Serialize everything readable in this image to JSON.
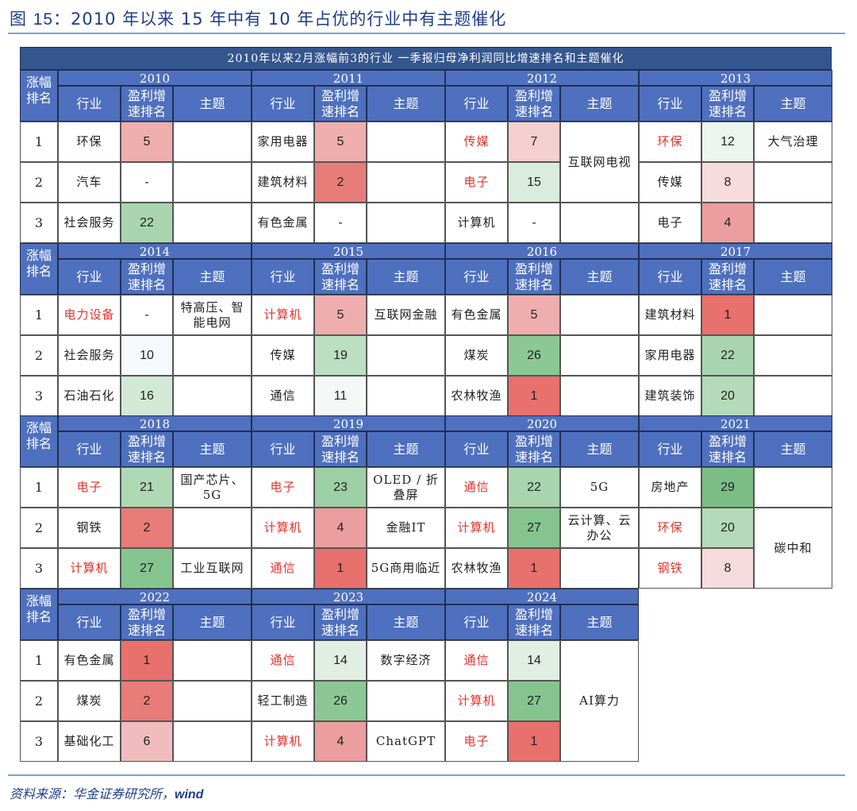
{
  "figure": {
    "title_prefix": "图 ",
    "title_num": "15",
    "title_text": "：2010 年以来 15 年中有 10 年占优的行业中有主题催化"
  },
  "table": {
    "banner": "2010年以来2月涨幅前3的行业 一季报归母净利润同比增速排名和主题催化",
    "headers": {
      "rank": "涨幅排名",
      "industry": "行业",
      "profit_rank": "盈利增速排名",
      "theme": "主题"
    },
    "ranks": [
      "1",
      "2",
      "3"
    ],
    "years": [
      {
        "year": "2010",
        "rows": [
          {
            "industry": "环保",
            "red": false,
            "profit": "5",
            "bg": "#efaeae",
            "theme": ""
          },
          {
            "industry": "汽车",
            "red": false,
            "profit": "-",
            "bg": "#ffffff",
            "theme": ""
          },
          {
            "industry": "社会服务",
            "red": false,
            "profit": "22",
            "bg": "#a9d5ae",
            "theme": ""
          }
        ]
      },
      {
        "year": "2011",
        "rows": [
          {
            "industry": "家用电器",
            "red": false,
            "profit": "5",
            "bg": "#efaeae",
            "theme": ""
          },
          {
            "industry": "建筑材料",
            "red": false,
            "profit": "2",
            "bg": "#e77c79",
            "theme": ""
          },
          {
            "industry": "有色金属",
            "red": false,
            "profit": "-",
            "bg": "#ffffff",
            "theme": ""
          }
        ]
      },
      {
        "year": "2012",
        "rows": [
          {
            "industry": "传媒",
            "red": true,
            "profit": "7",
            "bg": "#f3cfcf",
            "theme": ""
          },
          {
            "industry": "电子",
            "red": true,
            "profit": "15",
            "bg": "#d9ecdd",
            "theme": ""
          },
          {
            "industry": "计算机",
            "red": false,
            "profit": "-",
            "bg": "#ffffff",
            "theme": ""
          }
        ],
        "merged_theme": {
          "text": "互联网电视",
          "rows": [
            0,
            1
          ]
        }
      },
      {
        "year": "2013",
        "rows": [
          {
            "industry": "环保",
            "red": true,
            "profit": "12",
            "bg": "#ebf4ed",
            "theme": "大气治理"
          },
          {
            "industry": "传媒",
            "red": false,
            "profit": "8",
            "bg": "#f7dcdd",
            "theme": ""
          },
          {
            "industry": "电子",
            "red": false,
            "profit": "4",
            "bg": "#eb9e9d",
            "theme": ""
          }
        ]
      },
      {
        "year": "2014",
        "rows": [
          {
            "industry": "电力设备",
            "red": true,
            "profit": "-",
            "bg": "#ffffff",
            "theme": "特高压、智能电网"
          },
          {
            "industry": "社会服务",
            "red": false,
            "profit": "10",
            "bg": "#f7f8fb",
            "theme": ""
          },
          {
            "industry": "石油石化",
            "red": false,
            "profit": "16",
            "bg": "#d2e9d6",
            "theme": ""
          }
        ]
      },
      {
        "year": "2015",
        "rows": [
          {
            "industry": "计算机",
            "red": true,
            "profit": "5",
            "bg": "#efaeae",
            "theme": "互联网金融"
          },
          {
            "industry": "传媒",
            "red": false,
            "profit": "19",
            "bg": "#bcdfc1",
            "theme": ""
          },
          {
            "industry": "通信",
            "red": false,
            "profit": "11",
            "bg": "#f4f8f6",
            "theme": ""
          }
        ]
      },
      {
        "year": "2016",
        "rows": [
          {
            "industry": "有色金属",
            "red": false,
            "profit": "5",
            "bg": "#efaeae",
            "theme": ""
          },
          {
            "industry": "煤炭",
            "red": false,
            "profit": "26",
            "bg": "#8cc895",
            "theme": ""
          },
          {
            "industry": "农林牧渔",
            "red": false,
            "profit": "1",
            "bg": "#e8706d",
            "theme": ""
          }
        ]
      },
      {
        "year": "2017",
        "rows": [
          {
            "industry": "建筑材料",
            "red": false,
            "profit": "1",
            "bg": "#e8706d",
            "theme": ""
          },
          {
            "industry": "家用电器",
            "red": false,
            "profit": "22",
            "bg": "#a9d5ae",
            "theme": ""
          },
          {
            "industry": "建筑装饰",
            "red": false,
            "profit": "20",
            "bg": "#b4dab9",
            "theme": ""
          }
        ]
      },
      {
        "year": "2018",
        "rows": [
          {
            "industry": "电子",
            "red": true,
            "profit": "21",
            "bg": "#afd8b4",
            "theme": "国产芯片、5G"
          },
          {
            "industry": "钢铁",
            "red": false,
            "profit": "2",
            "bg": "#e77c79",
            "theme": ""
          },
          {
            "industry": "计算机",
            "red": true,
            "profit": "27",
            "bg": "#85c48f",
            "theme": "工业互联网"
          }
        ]
      },
      {
        "year": "2019",
        "rows": [
          {
            "industry": "电子",
            "red": true,
            "profit": "23",
            "bg": "#9dcfa4",
            "theme": "OLED / 折叠屏"
          },
          {
            "industry": "计算机",
            "red": true,
            "profit": "4",
            "bg": "#eb9e9d",
            "theme": "金融IT"
          },
          {
            "industry": "通信",
            "red": true,
            "profit": "1",
            "bg": "#e8706d",
            "theme": "5G商用临近"
          }
        ]
      },
      {
        "year": "2020",
        "rows": [
          {
            "industry": "通信",
            "red": true,
            "profit": "22",
            "bg": "#a9d5ae",
            "theme": "5G"
          },
          {
            "industry": "计算机",
            "red": true,
            "profit": "27",
            "bg": "#85c48f",
            "theme": "云计算、云办公"
          },
          {
            "industry": "农林牧渔",
            "red": false,
            "profit": "1",
            "bg": "#e8706d",
            "theme": ""
          }
        ]
      },
      {
        "year": "2021",
        "rows": [
          {
            "industry": "房地产",
            "red": false,
            "profit": "29",
            "bg": "#7bbd84",
            "theme": ""
          },
          {
            "industry": "环保",
            "red": true,
            "profit": "20",
            "bg": "#b4dab9",
            "theme": ""
          },
          {
            "industry": "钢铁",
            "red": true,
            "profit": "8",
            "bg": "#f7dcdd",
            "theme": ""
          }
        ],
        "merged_theme": {
          "text": "碳中和",
          "rows": [
            1,
            2
          ]
        }
      },
      {
        "year": "2022",
        "rows": [
          {
            "industry": "有色金属",
            "red": false,
            "profit": "1",
            "bg": "#e8706d",
            "theme": ""
          },
          {
            "industry": "煤炭",
            "red": false,
            "profit": "2",
            "bg": "#e77c79",
            "theme": ""
          },
          {
            "industry": "基础化工",
            "red": false,
            "profit": "6",
            "bg": "#f1bcbd",
            "theme": ""
          }
        ]
      },
      {
        "year": "2023",
        "rows": [
          {
            "industry": "通信",
            "red": true,
            "profit": "14",
            "bg": "#e1eee4",
            "theme": "数字经济"
          },
          {
            "industry": "轻工制造",
            "red": false,
            "profit": "26",
            "bg": "#8cc895",
            "theme": ""
          },
          {
            "industry": "计算机",
            "red": true,
            "profit": "4",
            "bg": "#eb9e9d",
            "theme": "ChatGPT"
          }
        ]
      },
      {
        "year": "2024",
        "rows": [
          {
            "industry": "通信",
            "red": true,
            "profit": "14",
            "bg": "#e1eee4",
            "theme": ""
          },
          {
            "industry": "计算机",
            "red": true,
            "profit": "27",
            "bg": "#85c48f",
            "theme": ""
          },
          {
            "industry": "电子",
            "red": true,
            "profit": "1",
            "bg": "#e8706d",
            "theme": ""
          }
        ],
        "merged_theme": {
          "text": "AI算力",
          "rows": [
            0,
            1,
            2
          ]
        }
      }
    ]
  },
  "source": {
    "label": "资料来源：华金证券研究所，",
    "wind": "wind"
  },
  "colors": {
    "banner": "#34568f",
    "header": "#4f70bf",
    "highlight_text": "#e8312b",
    "title_text": "#1f3d8c",
    "rule": "#7aa3d6"
  }
}
